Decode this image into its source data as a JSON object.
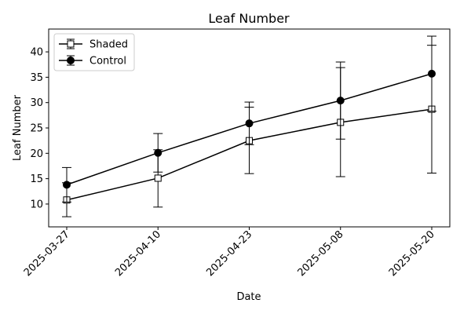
{
  "chart_data": {
    "type": "line",
    "title": "Leaf Number",
    "xlabel": "Date",
    "ylabel": "Leaf Number",
    "categories": [
      "2025-03-27",
      "2025-04-10",
      "2025-04-23",
      "2025-05-08",
      "2025-05-20"
    ],
    "ylim": [
      5.5,
      44.5
    ],
    "yticks": [
      10,
      15,
      20,
      25,
      30,
      35,
      40
    ],
    "grid": false,
    "legend": "top-left",
    "series": [
      {
        "name": "Shaded",
        "marker": "square-open",
        "color": "#000000",
        "values": [
          10.8,
          15.1,
          22.5,
          26.1,
          28.7
        ],
        "lower": [
          7.5,
          9.4,
          16.0,
          15.4,
          16.1
        ],
        "upper": [
          14.2,
          20.7,
          29.1,
          36.9,
          41.3
        ]
      },
      {
        "name": "Control",
        "marker": "circle-filled",
        "color": "#000000",
        "values": [
          13.8,
          20.1,
          25.9,
          30.4,
          35.7
        ],
        "lower": [
          10.4,
          16.3,
          21.7,
          22.8,
          28.3
        ],
        "upper": [
          17.2,
          23.9,
          30.1,
          38.0,
          43.1
        ]
      }
    ]
  }
}
